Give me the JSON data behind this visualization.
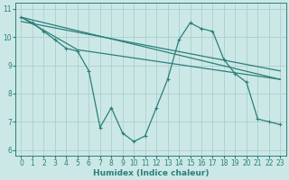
{
  "background_color": "#cce8e6",
  "grid_color": "#aacfcd",
  "line_color": "#2a7f7a",
  "xlabel": "Humidex (Indice chaleur)",
  "xlim": [
    -0.5,
    23.5
  ],
  "ylim": [
    5.8,
    11.2
  ],
  "yticks": [
    6,
    7,
    8,
    9,
    10,
    11
  ],
  "xticks": [
    0,
    1,
    2,
    3,
    4,
    5,
    6,
    7,
    8,
    9,
    10,
    11,
    12,
    13,
    14,
    15,
    16,
    17,
    18,
    19,
    20,
    21,
    22,
    23
  ],
  "series_main_x": [
    0,
    1,
    2,
    3,
    4,
    5,
    6,
    7,
    8,
    9,
    10,
    11,
    12,
    13,
    14,
    15,
    16,
    17,
    18,
    19,
    20,
    21,
    22,
    23
  ],
  "series_main_y": [
    10.7,
    10.5,
    10.2,
    9.9,
    9.6,
    9.5,
    8.8,
    6.8,
    7.5,
    6.6,
    6.3,
    6.5,
    7.5,
    8.5,
    9.9,
    10.5,
    10.3,
    10.2,
    9.2,
    8.7,
    8.4,
    7.1,
    7.0,
    6.9
  ],
  "line1_x": [
    0,
    23
  ],
  "line1_y": [
    10.7,
    8.5
  ],
  "line2_x": [
    0,
    23
  ],
  "line2_y": [
    10.55,
    8.8
  ],
  "line3_x": [
    0,
    5,
    23
  ],
  "line3_y": [
    10.7,
    9.55,
    8.5
  ]
}
